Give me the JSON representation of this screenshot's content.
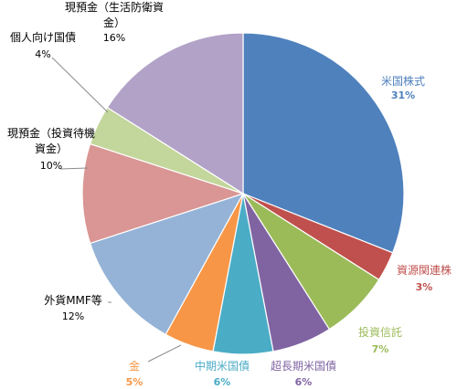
{
  "chart_data": {
    "type": "pie",
    "start_angle_deg": 0,
    "direction": "clockwise",
    "slices": [
      {
        "label": "米国株式",
        "value": 31,
        "pct": "31%",
        "color": "#4F81BD",
        "label_color": "#4F81BD"
      },
      {
        "label": "資源関連株",
        "value": 3,
        "pct": "3%",
        "color": "#C0504D",
        "label_color": "#C0504D"
      },
      {
        "label": "投資信託",
        "value": 7,
        "pct": "7%",
        "color": "#9BBB59",
        "label_color": "#9BBB59"
      },
      {
        "label": "超長期米国債",
        "value": 6,
        "pct": "6%",
        "color": "#8064A2",
        "label_color": "#8064A2"
      },
      {
        "label": "中期米国債",
        "value": 6,
        "pct": "6%",
        "color": "#4BACC6",
        "label_color": "#4BACC6"
      },
      {
        "label": "金",
        "value": 5,
        "pct": "5%",
        "color": "#F79646",
        "label_color": "#F79646"
      },
      {
        "label": "外貨MMF等",
        "value": 12,
        "pct": "12%",
        "color": "#95B3D7",
        "label_color": "#000000"
      },
      {
        "label": "現預金（投資待機資金）",
        "value": 10,
        "pct": "10%",
        "color": "#D99694",
        "label_color": "#000000"
      },
      {
        "label": "個人向け国債",
        "value": 4,
        "pct": "4%",
        "color": "#C3D69B",
        "label_color": "#000000"
      },
      {
        "label": "現預金（生活防衛資金）",
        "value": 16,
        "pct": "16%",
        "color": "#B2A2C7",
        "label_color": "#000000"
      }
    ]
  }
}
